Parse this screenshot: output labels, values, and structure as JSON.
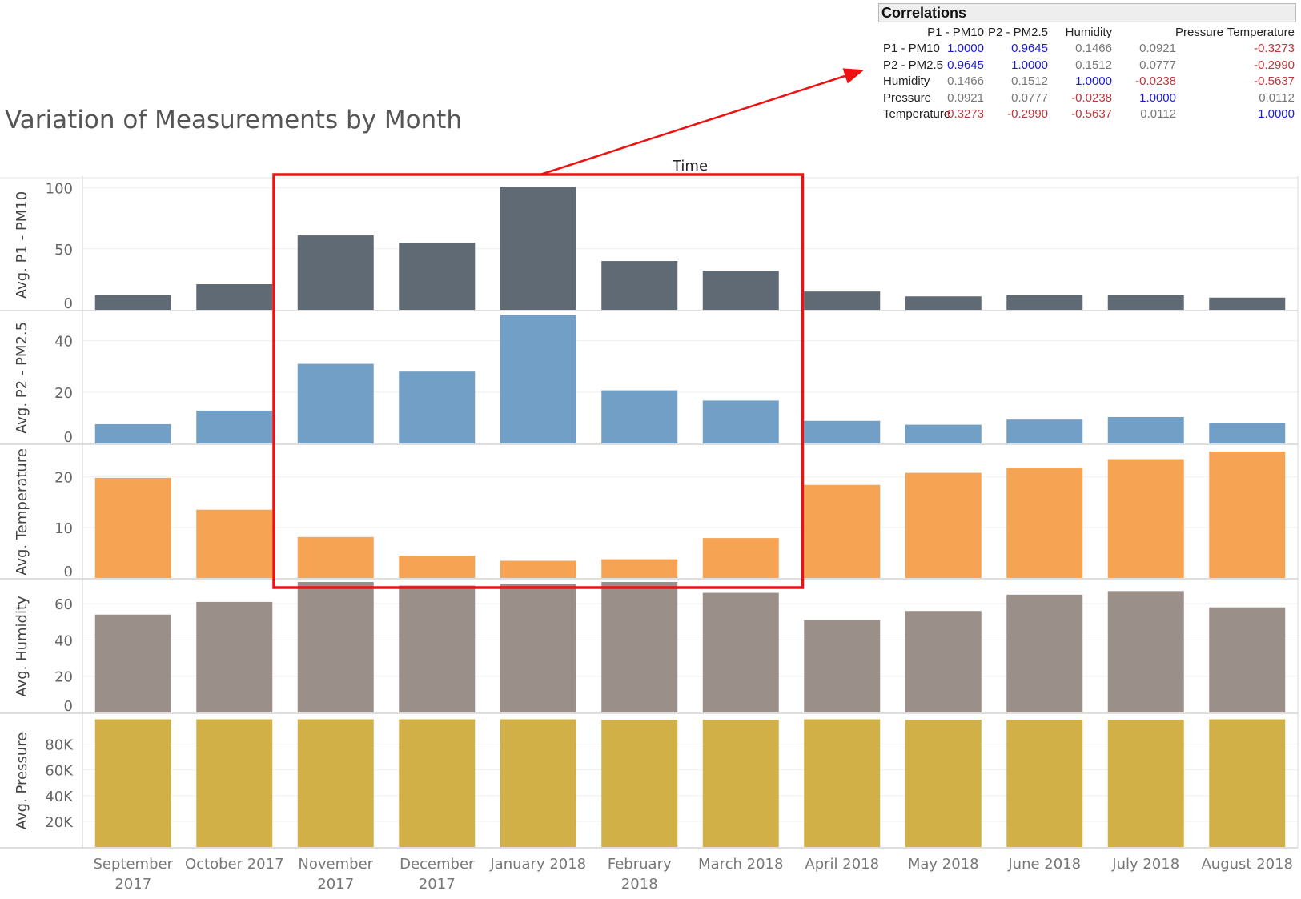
{
  "title": "Variation of Measurements by Month",
  "column_header": "Time",
  "correlations": {
    "title": "Correlations",
    "columns": [
      "P1 - PM10",
      "P2 - PM2.5",
      "Humidity",
      "Pressure",
      "Temperature"
    ],
    "rows": [
      {
        "label": "P1 - PM10",
        "values": [
          "1.0000",
          "0.9645",
          "0.1466",
          "0.0921",
          "-0.3273"
        ]
      },
      {
        "label": "P2 - PM2.5",
        "values": [
          "0.9645",
          "1.0000",
          "0.1512",
          "0.0777",
          "-0.2990"
        ]
      },
      {
        "label": "Humidity",
        "values": [
          "0.1466",
          "0.1512",
          "1.0000",
          "-0.0238",
          "-0.5637"
        ]
      },
      {
        "label": "Pressure",
        "values": [
          "0.0921",
          "0.0777",
          "-0.0238",
          "1.0000",
          "0.0112"
        ]
      },
      {
        "label": "Temperature",
        "values": [
          "-0.3273",
          "-0.2990",
          "-0.5637",
          "0.0112",
          "1.0000"
        ]
      }
    ],
    "colors": {
      "strong_positive": "#1a1adf",
      "neutral": "#777777",
      "negative": "#c0363c"
    }
  },
  "highlight": {
    "color": "#ee1111",
    "from_category": "November 2017",
    "to_category": "March 2018",
    "points_to": "Correlations"
  },
  "chart_data": {
    "type": "bar",
    "categories": [
      "September 2017",
      "October 2017",
      "November 2017",
      "December 2017",
      "January 2018",
      "February 2018",
      "March 2018",
      "April 2018",
      "May 2018",
      "June 2018",
      "July 2018",
      "August 2018"
    ],
    "category_labels": [
      [
        "September",
        "2017"
      ],
      [
        "October 2017"
      ],
      [
        "November",
        "2017"
      ],
      [
        "December",
        "2017"
      ],
      [
        "January 2018"
      ],
      [
        "February",
        "2018"
      ],
      [
        "March 2018"
      ],
      [
        "April 2018"
      ],
      [
        "May 2018"
      ],
      [
        "June 2018"
      ],
      [
        "July 2018"
      ],
      [
        "August 2018"
      ]
    ],
    "series": [
      {
        "name": "Avg. P1 - PM10",
        "color": "#5f6a74",
        "ylim": [
          0,
          105
        ],
        "ticks": [
          0,
          50,
          100
        ],
        "tick_labels": [
          "0",
          "50",
          "100"
        ],
        "values": [
          12,
          21,
          61,
          55,
          101,
          40,
          32,
          15,
          11,
          12,
          12,
          10
        ]
      },
      {
        "name": "Avg. P2 - PM2.5",
        "color": "#729fc6",
        "ylim": [
          0,
          50.5
        ],
        "ticks": [
          0,
          20,
          40
        ],
        "tick_labels": [
          "0",
          "20",
          "40"
        ],
        "values": [
          7.5,
          12.8,
          31,
          28,
          50,
          20.7,
          16.7,
          8.8,
          7.3,
          9.3,
          10.3,
          8
        ]
      },
      {
        "name": "Avg. Temperature",
        "color": "#f6a453",
        "ylim": [
          0,
          25.8
        ],
        "ticks": [
          0,
          10,
          20
        ],
        "tick_labels": [
          "0",
          "10",
          "20"
        ],
        "values": [
          19.8,
          13.5,
          8.1,
          4.4,
          3.4,
          3.7,
          7.9,
          18.4,
          20.8,
          21.8,
          23.5,
          25
        ]
      },
      {
        "name": "Avg. Humidity",
        "color": "#9a8f89",
        "ylim": [
          0,
          72
        ],
        "ticks": [
          0,
          20,
          40,
          60
        ],
        "tick_labels": [
          "0",
          "20",
          "40",
          "60"
        ],
        "values": [
          54,
          61,
          72,
          70,
          71,
          72,
          66,
          51,
          56,
          65,
          67,
          58
        ]
      },
      {
        "name": "Avg. Pressure",
        "color": "#d1b147",
        "ylim": [
          0,
          101500
        ],
        "ticks": [
          20000,
          40000,
          60000,
          80000
        ],
        "tick_labels": [
          "20K",
          "40K",
          "60K",
          "80K"
        ],
        "values": [
          99300,
          99300,
          99300,
          99300,
          99300,
          98900,
          98900,
          99300,
          98900,
          98900,
          98900,
          99300
        ]
      }
    ]
  }
}
